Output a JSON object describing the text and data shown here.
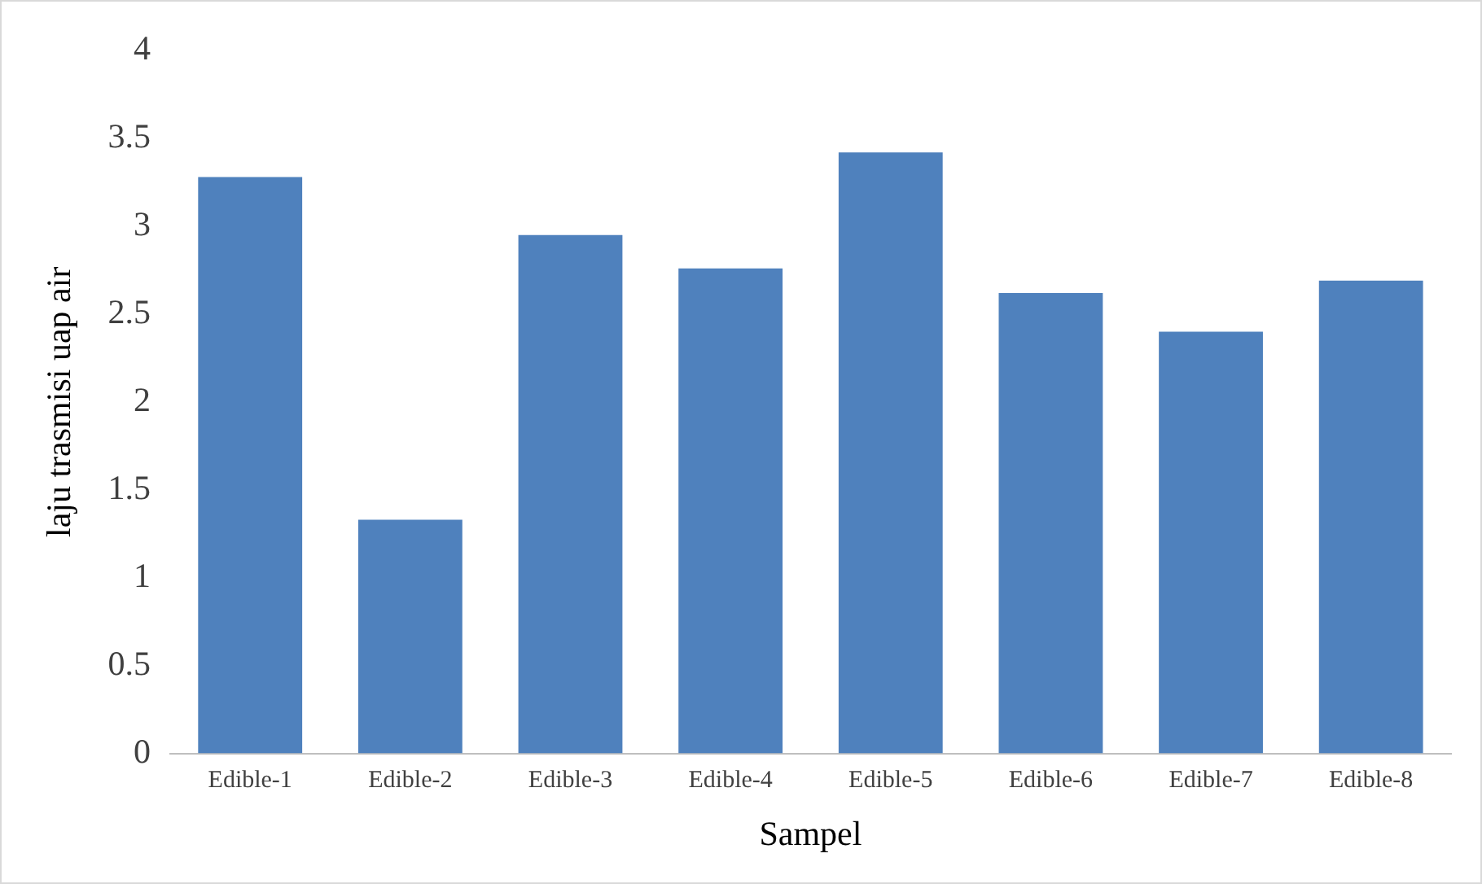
{
  "chart_data": {
    "type": "bar",
    "xlabel": "Sampel",
    "ylabel": "laju trasmisi uap air",
    "categories": [
      "Edible-1",
      "Edible-2",
      "Edible-3",
      "Edible-4",
      "Edible-5",
      "Edible-6",
      "Edible-7",
      "Edible-8"
    ],
    "values": [
      3.28,
      1.33,
      2.95,
      2.76,
      3.42,
      2.62,
      2.4,
      2.69
    ],
    "color": "#4f81bd",
    "ylim": [
      0,
      4
    ],
    "yticks": [
      0,
      0.5,
      1,
      1.5,
      2,
      2.5,
      3,
      3.5,
      4
    ],
    "grid": false,
    "legend": false
  }
}
